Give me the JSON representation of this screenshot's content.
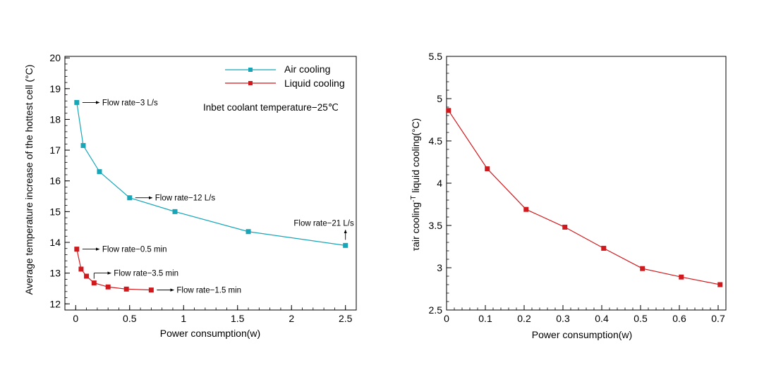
{
  "chart_data": [
    {
      "type": "line",
      "xlabel": "Power consumption(w)",
      "ylabel": "Average temperature increase of the hottest cell (°C)",
      "xlim": [
        -0.1,
        2.6
      ],
      "ylim": [
        11.8,
        20.05
      ],
      "xticks": [
        0,
        0.5,
        1,
        1.5,
        2,
        2.5
      ],
      "xtick_labels": [
        "0",
        "0.5",
        "1",
        "1.5",
        "2",
        "2.5"
      ],
      "yticks": [
        12,
        13,
        14,
        15,
        16,
        17,
        18,
        19,
        20
      ],
      "ytick_labels": [
        "12",
        "13",
        "14",
        "15",
        "16",
        "17",
        "18",
        "19",
        "20"
      ],
      "grid": false,
      "legend_position": "top-right",
      "condition_text": "Inbet coolant temperature−25℃",
      "series": [
        {
          "name": "Air cooling",
          "color": "#17a6b8",
          "marker": "square",
          "x": [
            0.01,
            0.07,
            0.22,
            0.5,
            0.92,
            1.6,
            2.5
          ],
          "y": [
            18.55,
            17.15,
            16.3,
            15.45,
            15.0,
            14.35,
            13.9
          ]
        },
        {
          "name": "Liquid cooling",
          "color": "#d0191c",
          "marker": "square",
          "x": [
            0.01,
            0.05,
            0.1,
            0.17,
            0.3,
            0.47,
            0.7
          ],
          "y": [
            13.78,
            13.13,
            12.9,
            12.68,
            12.55,
            12.48,
            12.45
          ]
        }
      ],
      "annotations": [
        {
          "text": "Flow rate−3 L/s",
          "x": 0.01,
          "y": 18.55,
          "arrow": "right"
        },
        {
          "text": "Flow rate−12 L/s",
          "x": 0.5,
          "y": 15.45,
          "arrow": "right"
        },
        {
          "text": "Flow rate−21 L/s",
          "x": 2.5,
          "y": 13.9,
          "arrow": "up"
        },
        {
          "text": "Flow rate−0.5 min",
          "x": 0.01,
          "y": 13.78,
          "arrow": "right"
        },
        {
          "text": "Flow rate−3.5 min",
          "x": 0.17,
          "y": 12.68,
          "arrow": "up-right"
        },
        {
          "text": "Flow rate−1.5 min",
          "x": 0.7,
          "y": 12.45,
          "arrow": "right"
        }
      ]
    },
    {
      "type": "line",
      "xlabel": "Power consumption(w)",
      "ylabel_main": "τair cooling",
      "ylabel_sup": "-T",
      "ylabel_rest": " liquid cooling(°C)",
      "xlim": [
        0,
        0.72
      ],
      "ylim": [
        2.5,
        5.5
      ],
      "xticks": [
        0,
        0.1,
        0.2,
        0.3,
        0.4,
        0.5,
        0.6,
        0.7
      ],
      "xtick_labels": [
        "0",
        "0.1",
        "0.2",
        "0.3",
        "0.4",
        "0.5",
        "0.6",
        "0.7"
      ],
      "yticks": [
        2.5,
        3,
        3.5,
        4,
        4.5,
        5,
        5.5
      ],
      "ytick_labels": [
        "2.5",
        "3",
        "3.5",
        "4",
        "4.5",
        "5",
        "5.5"
      ],
      "grid": false,
      "series": [
        {
          "color": "#d0191c",
          "marker": "square",
          "x": [
            0.005,
            0.105,
            0.205,
            0.305,
            0.405,
            0.505,
            0.605,
            0.705
          ],
          "y": [
            4.86,
            4.17,
            3.69,
            3.48,
            3.23,
            2.99,
            2.89,
            2.8
          ]
        }
      ]
    }
  ]
}
